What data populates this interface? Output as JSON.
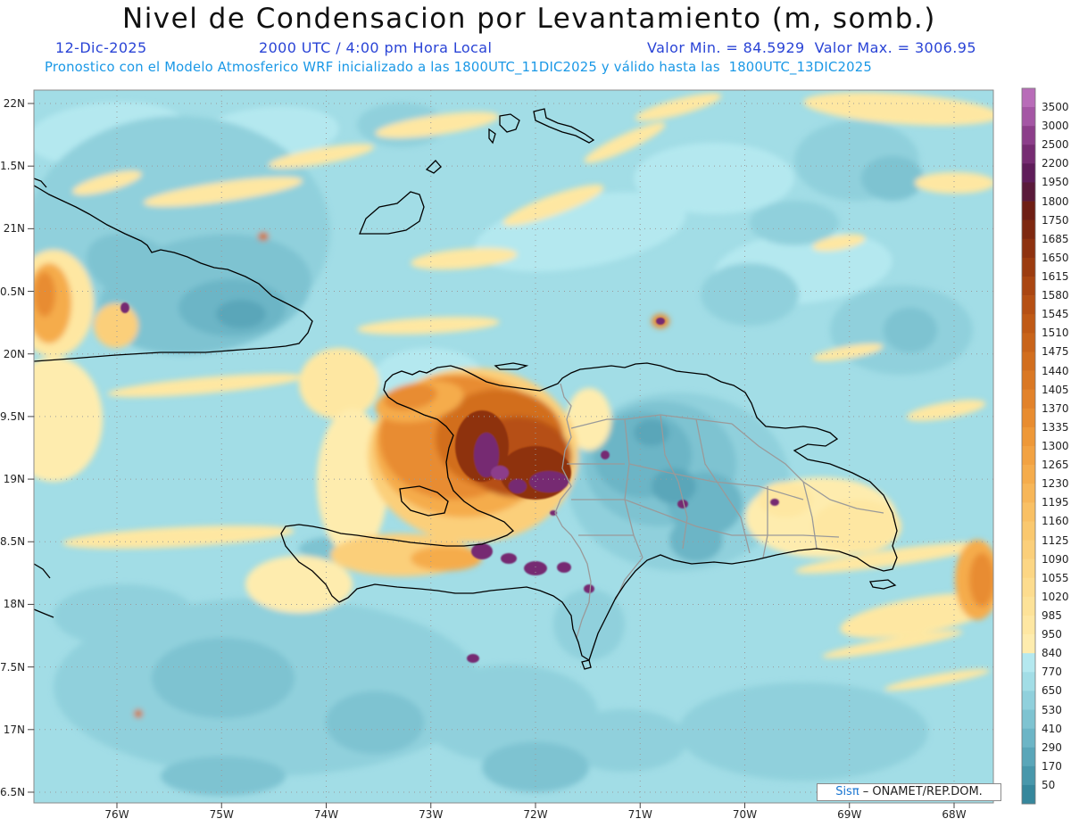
{
  "title": "Nivel de Condensacion por Levantamiento (m, somb.)",
  "subtitle": {
    "date": "12-Dic-2025",
    "time": "2000 UTC / 4:00 pm Hora Local",
    "range": "Valor Min. = 84.5929  Valor Max. = 3006.95"
  },
  "forecast_line": "Pronostico con el Modelo Atmosferico WRF inicializado a las 1800UTC_11DIC2025 y válido hasta las  1800UTC_13DIC2025",
  "axes": {
    "lat_labels": [
      "22N",
      "1.5N",
      "21N",
      "0.5N",
      "20N",
      "9.5N",
      "19N",
      "8.5N",
      "18N",
      "7.5N",
      "17N",
      "6.5N"
    ],
    "lon_labels": [
      "76W",
      "75W",
      "74W",
      "73W",
      "72W",
      "71W",
      "70W",
      "69W",
      "68W"
    ]
  },
  "colorbar": {
    "labels": [
      "3500",
      "3000",
      "2500",
      "2200",
      "1950",
      "1800",
      "1750",
      "1685",
      "1650",
      "1615",
      "1580",
      "1545",
      "1510",
      "1475",
      "1440",
      "1405",
      "1370",
      "1335",
      "1300",
      "1265",
      "1230",
      "1195",
      "1160",
      "1125",
      "1090",
      "1055",
      "1020",
      "985",
      "950",
      "840",
      "770",
      "650",
      "530",
      "410",
      "290",
      "170",
      "50"
    ],
    "colors": [
      "#b86cb8",
      "#a456a4",
      "#8c3e8a",
      "#762c72",
      "#5f1d5a",
      "#5a1a3a",
      "#6e1e14",
      "#7e2810",
      "#8e3210",
      "#9c3c10",
      "#aa4612",
      "#b65014",
      "#c05a16",
      "#c9641a",
      "#d26e1e",
      "#da7824",
      "#e2822a",
      "#e88c30",
      "#ee9838",
      "#f2a242",
      "#f5ac4c",
      "#f7b658",
      "#f9c064",
      "#fac86e",
      "#fbcf7a",
      "#fcd684",
      "#fddc8e",
      "#fde298",
      "#fee7a2",
      "#feecae",
      "#b4e8ef",
      "#a2dde6",
      "#90d0dc",
      "#7ec3d1",
      "#6cb5c6",
      "#5aa6b9",
      "#4897ab",
      "#36879c"
    ]
  },
  "credit": {
    "brand": "Sisπ",
    "text": " – ONAMET/REP.DOM."
  },
  "colors": {
    "title": "#111111",
    "subtitle": "#2a44d6",
    "forecast": "#1a98e6",
    "brand": "#1a76d2",
    "coastline": "#000000",
    "political_borders": "#9a9a9a",
    "grid": "#9a9a9a"
  }
}
